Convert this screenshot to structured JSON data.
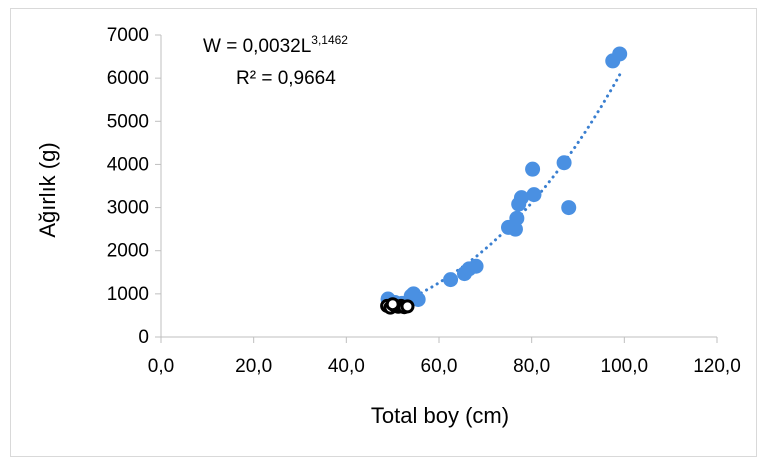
{
  "chart_data": {
    "type": "scatter",
    "xlabel": "Total boy (cm)",
    "ylabel": "Ağırlık (g)",
    "xlim": [
      0,
      120
    ],
    "ylim": [
      0,
      7000
    ],
    "x_ticks": [
      "0,0",
      "20,0",
      "40,0",
      "60,0",
      "80,0",
      "100,0",
      "120,0"
    ],
    "y_ticks": [
      "0",
      "1000",
      "2000",
      "3000",
      "4000",
      "5000",
      "6000",
      "7000"
    ],
    "grid": false,
    "legend": "none",
    "annotations": {
      "equation_main": "W = 0,0032L",
      "equation_exp": "3,1462",
      "r_squared": "R² = 0,9664"
    },
    "colors": {
      "points": "#4a90e2",
      "trendline": "#3a7fd0",
      "dark_points": "#000000"
    },
    "trendline": {
      "style": "dotted",
      "a": 0.0032,
      "b": 3.1462,
      "x_from": 49,
      "x_to": 99
    },
    "series": [
      {
        "points": [
          [
            49,
            880
          ],
          [
            50.5,
            800
          ],
          [
            52,
            780
          ],
          [
            53,
            760
          ],
          [
            54.5,
            1000
          ],
          [
            55.5,
            870
          ],
          [
            54,
            950
          ],
          [
            62.5,
            1330
          ],
          [
            65.5,
            1470
          ],
          [
            66.5,
            1580
          ],
          [
            68,
            1640
          ],
          [
            75,
            2540
          ],
          [
            76.5,
            2500
          ],
          [
            76.8,
            2750
          ],
          [
            77.2,
            3080
          ],
          [
            77.8,
            3230
          ],
          [
            80.2,
            3890
          ],
          [
            80.5,
            3300
          ],
          [
            87,
            4040
          ],
          [
            88,
            3000
          ],
          [
            97.5,
            6400
          ],
          [
            99,
            6560
          ]
        ]
      },
      {
        "points": [
          [
            48.8,
            720
          ],
          [
            49.5,
            680
          ],
          [
            50.3,
            740
          ],
          [
            51.2,
            700
          ],
          [
            51.8,
            720
          ],
          [
            52.5,
            690
          ],
          [
            53.2,
            710
          ],
          [
            50,
            760
          ]
        ]
      }
    ]
  }
}
